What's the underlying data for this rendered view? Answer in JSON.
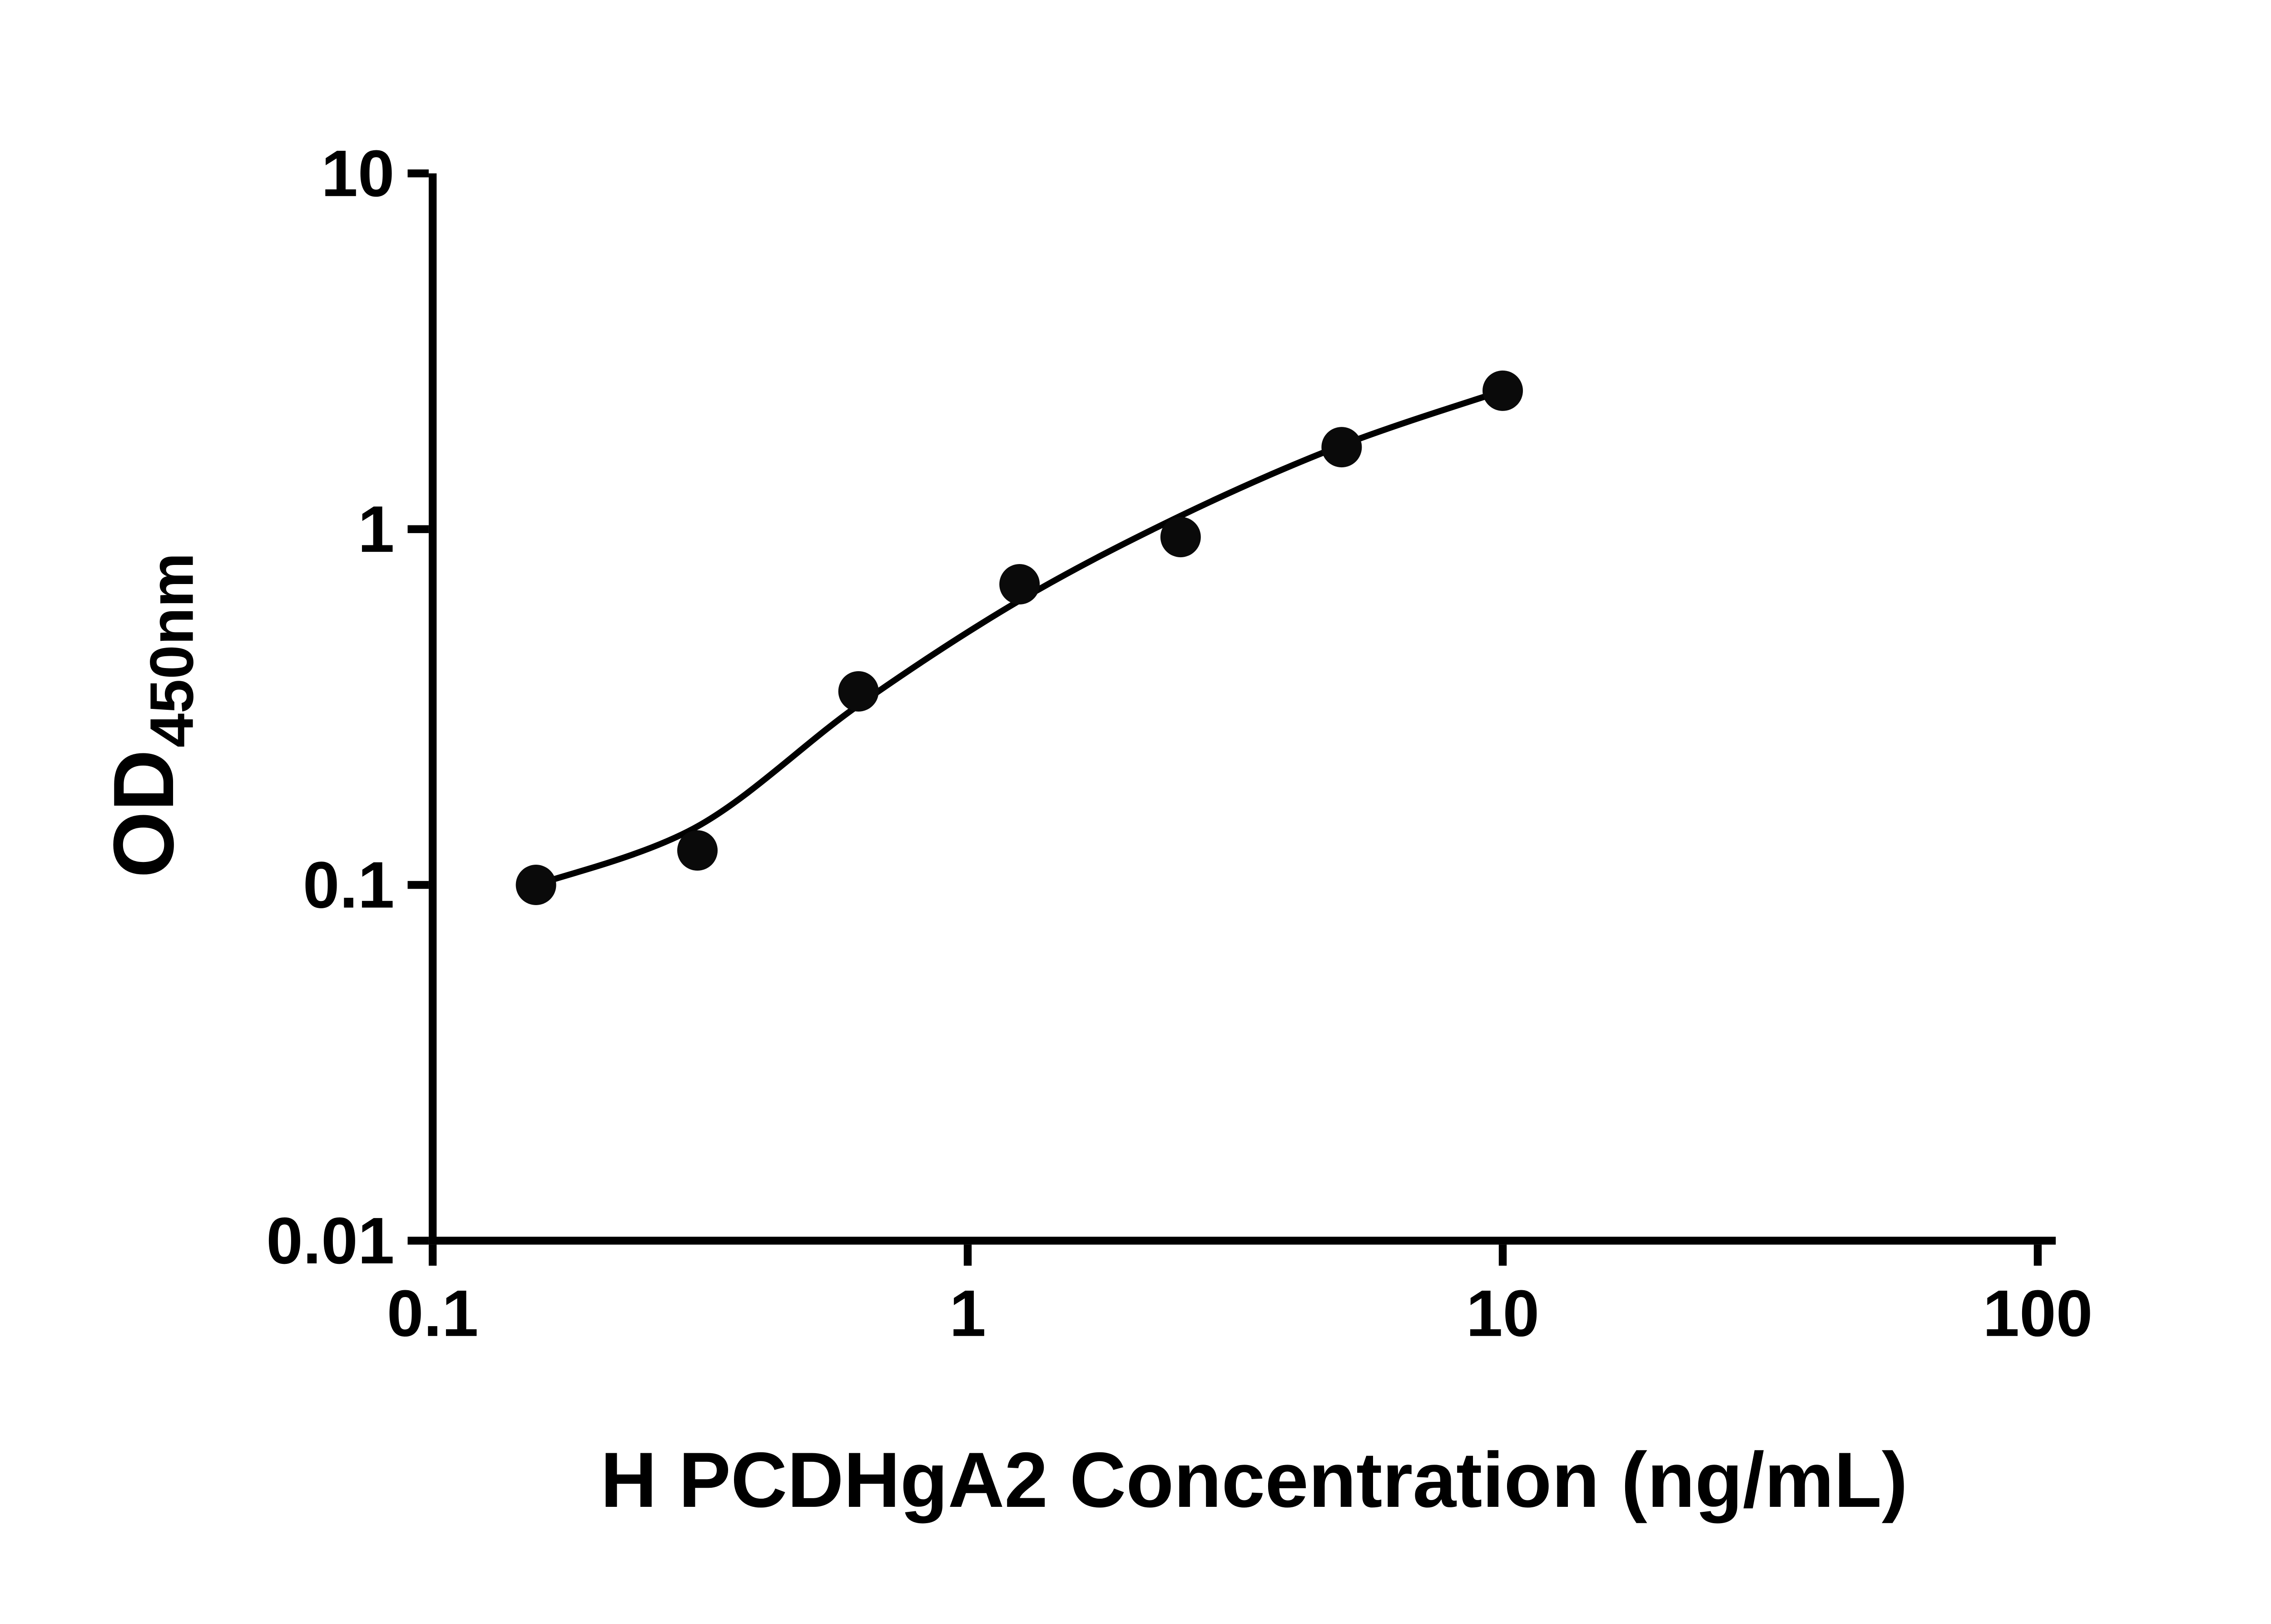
{
  "chart_data": {
    "type": "scatter",
    "title": "",
    "xlabel": "H PCDHgA2 Concentration (ng/mL)",
    "ylabel_main": "OD",
    "ylabel_sub": "450nm",
    "x_scale": "log",
    "y_scale": "log",
    "xlim": [
      0.1,
      100
    ],
    "ylim": [
      0.01,
      10
    ],
    "x_ticks": [
      0.1,
      1,
      10,
      100
    ],
    "x_tick_labels": [
      "0.1",
      "1",
      "10",
      "100"
    ],
    "y_ticks": [
      0.01,
      0.1,
      1,
      10
    ],
    "y_tick_labels": [
      "0.01",
      "0.1",
      "1",
      "10"
    ],
    "grid": false,
    "legend": false,
    "marker_color": "#0a0a0a",
    "line_color": "#000000",
    "axis_color": "#000000",
    "points": [
      {
        "x": 0.156,
        "y": 0.1
      },
      {
        "x": 0.3125,
        "y": 0.125
      },
      {
        "x": 0.625,
        "y": 0.35
      },
      {
        "x": 1.25,
        "y": 0.7
      },
      {
        "x": 2.5,
        "y": 0.95
      },
      {
        "x": 5,
        "y": 1.7
      },
      {
        "x": 10,
        "y": 2.45
      }
    ],
    "fit_curve": [
      {
        "x": 0.156,
        "y": 0.1
      },
      {
        "x": 0.3125,
        "y": 0.146
      },
      {
        "x": 0.625,
        "y": 0.32
      },
      {
        "x": 1.25,
        "y": 0.63
      },
      {
        "x": 2.5,
        "y": 1.09
      },
      {
        "x": 5,
        "y": 1.72
      },
      {
        "x": 10,
        "y": 2.45
      }
    ]
  }
}
